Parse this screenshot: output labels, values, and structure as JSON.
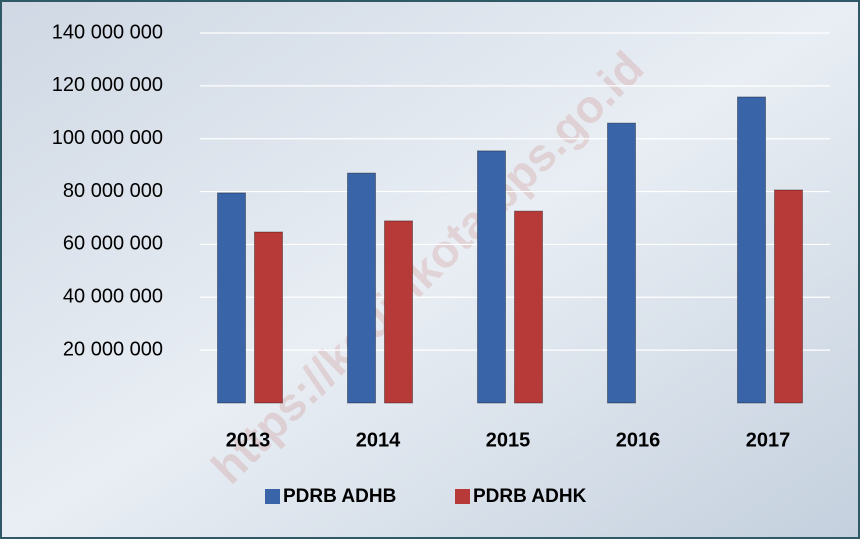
{
  "chart_data": {
    "type": "bar",
    "categories": [
      "2013",
      "2014",
      "2015",
      "2016",
      "2017"
    ],
    "series": [
      {
        "name": "PDRB ADHB",
        "color": "#3a64a8",
        "values": [
          79500000,
          87000000,
          95400000,
          105900000,
          115800000
        ]
      },
      {
        "name": "PDRB ADHK",
        "color": "#b83a38",
        "values": [
          64700000,
          68900000,
          72600000,
          null,
          80600000
        ]
      }
    ],
    "ylim": [
      0,
      140000000
    ],
    "yticks": [
      {
        "value": 20000000,
        "label": "20 000 000"
      },
      {
        "value": 40000000,
        "label": "40 000 000"
      },
      {
        "value": 60000000,
        "label": "60 000 000"
      },
      {
        "value": 80000000,
        "label": "80 000 000"
      },
      {
        "value": 100000000,
        "label": "100 000 000"
      },
      {
        "value": 120000000,
        "label": "120 000 000"
      },
      {
        "value": 140000000,
        "label": "140 000 000"
      }
    ],
    "grid": true,
    "legend": "bottom",
    "watermark": "https://kedirikota.bps.go.id"
  }
}
